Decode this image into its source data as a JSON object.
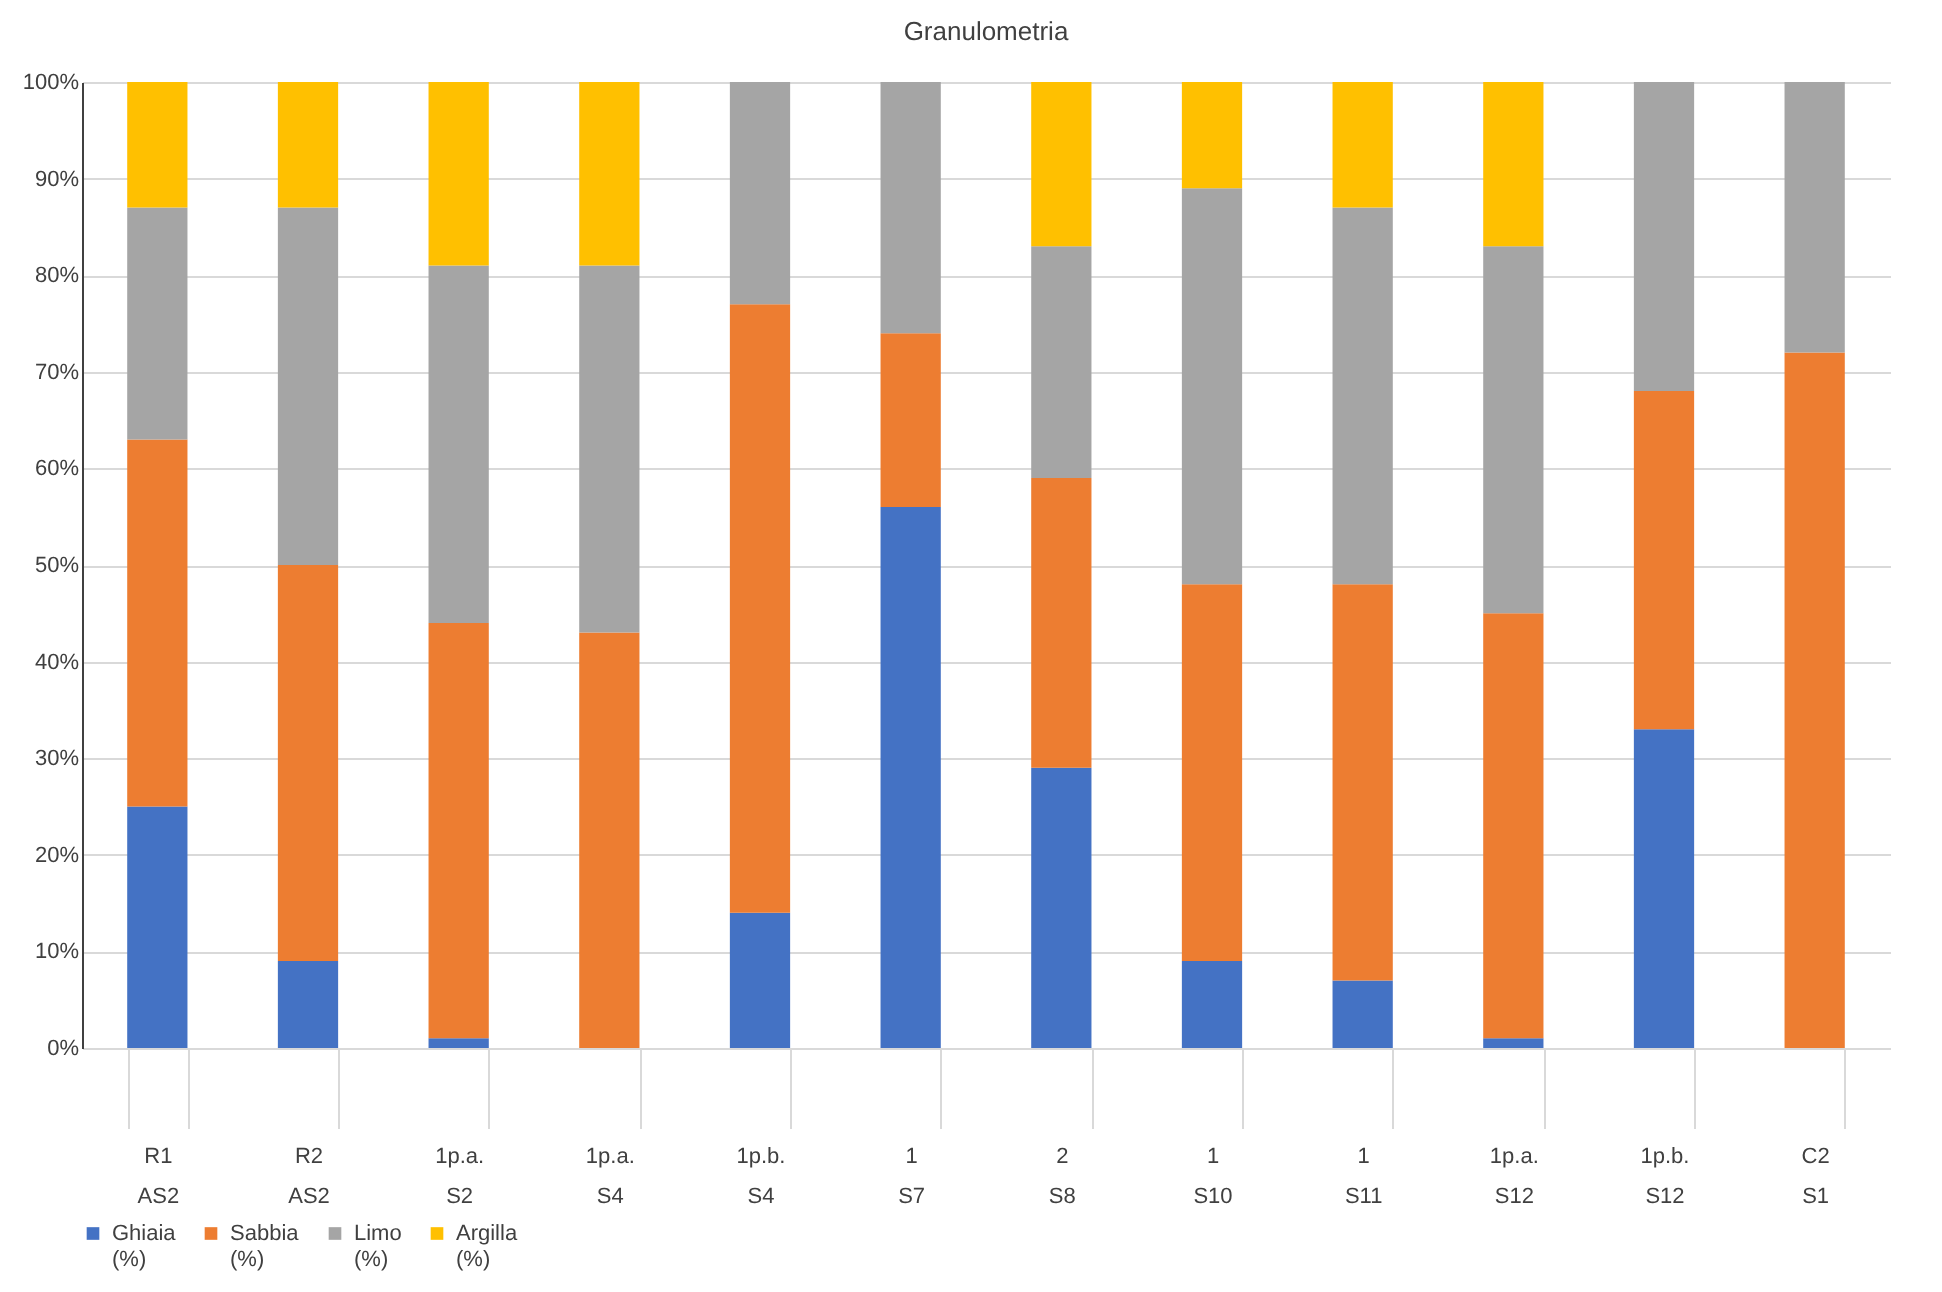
{
  "chart_data": {
    "type": "bar",
    "title": "Granulometria",
    "stacked": true,
    "categories": [
      "R1\nAS2",
      "R2\nAS2",
      "1p.a.\nS2",
      "1p.a.\nS4",
      "1p.b.\nS4",
      "1\nS7",
      "2\nS8",
      "1\nS10",
      "1\nS11",
      "1p.a.\nS12",
      "1p.b.\nS12",
      "C2\nS1"
    ],
    "series": [
      {
        "name": "Ghiaia (%)",
        "color": "#4472c4",
        "values": [
          25,
          9,
          1,
          0,
          14,
          56,
          29,
          9,
          7,
          1,
          33,
          0
        ]
      },
      {
        "name": "Sabbia (%)",
        "color": "#ed7d31",
        "values": [
          38,
          41,
          43,
          43,
          63,
          18,
          30,
          39,
          41,
          44,
          35,
          72
        ]
      },
      {
        "name": "Limo (%)",
        "color": "#a5a5a5",
        "values": [
          24,
          37,
          37,
          38,
          23,
          26,
          24,
          41,
          39,
          38,
          32,
          28
        ]
      },
      {
        "name": "Argilla (%)",
        "color": "#ffc000",
        "values": [
          13,
          13,
          19,
          19,
          0,
          0,
          17,
          11,
          13,
          17,
          0,
          0
        ]
      }
    ],
    "ylim": [
      0,
      100
    ],
    "yticks": [
      {
        "value": 0,
        "label": "0%"
      },
      {
        "value": 10,
        "label": "10%"
      },
      {
        "value": 20,
        "label": "20%"
      },
      {
        "value": 30,
        "label": "30%"
      },
      {
        "value": 40,
        "label": "40%"
      },
      {
        "value": 50,
        "label": "50%"
      },
      {
        "value": 60,
        "label": "60%"
      },
      {
        "value": 70,
        "label": "70%"
      },
      {
        "value": 80,
        "label": "80%"
      },
      {
        "value": 90,
        "label": "90%"
      },
      {
        "value": 100,
        "label": "100%"
      }
    ],
    "grid": "y",
    "legend": "bottom"
  }
}
